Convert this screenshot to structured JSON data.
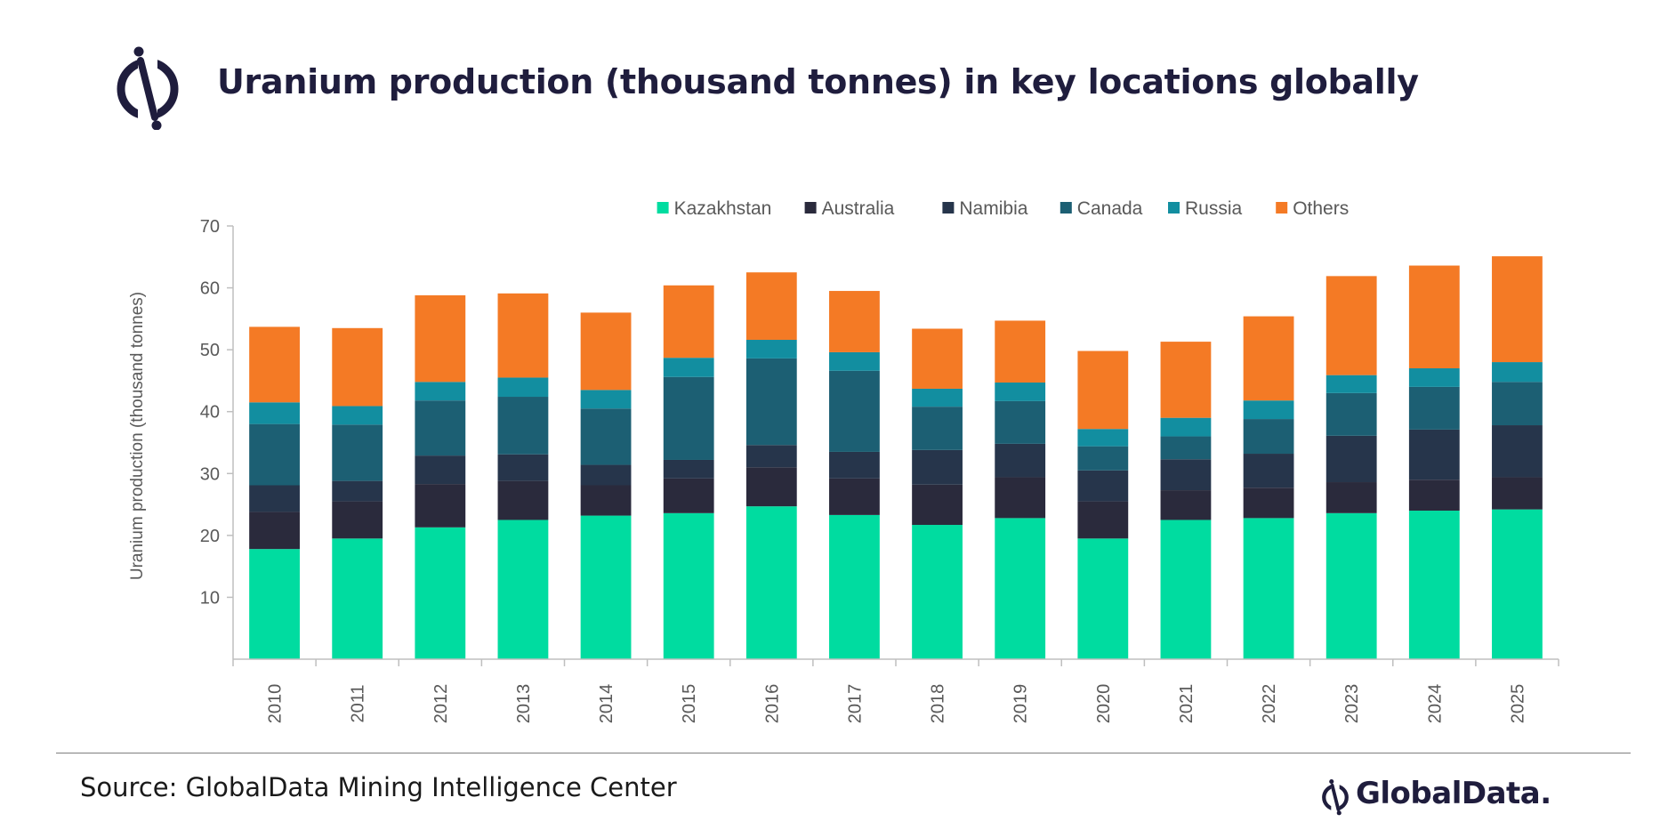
{
  "header": {
    "title": "Uranium production (thousand tonnes) in key locations globally"
  },
  "footer": {
    "source": "Source: GlobalData Mining Intelligence Center",
    "brand": "GlobalData."
  },
  "colors": {
    "brand_navy": "#1f1d3d",
    "axis": "#bfbfbf",
    "tick_text": "#595959"
  },
  "chart_data": {
    "type": "bar",
    "stacked": true,
    "title": "",
    "xlabel": "",
    "ylabel": "Uranium production (thousand tonnes)",
    "ylim": [
      0,
      70
    ],
    "yticks": [
      10,
      20,
      30,
      40,
      50,
      60,
      70
    ],
    "legend_position": "top",
    "grid": false,
    "categories": [
      "2010",
      "2011",
      "2012",
      "2013",
      "2014",
      "2015",
      "2016",
      "2017",
      "2018",
      "2019",
      "2020",
      "2021",
      "2022",
      "2023",
      "2024",
      "2025"
    ],
    "series": [
      {
        "name": "Kazakhstan",
        "color": "#00dca0",
        "values": [
          17.8,
          19.5,
          21.3,
          22.5,
          23.2,
          23.6,
          24.7,
          23.3,
          21.7,
          22.8,
          19.5,
          22.5,
          22.8,
          23.6,
          24.0,
          24.2
        ]
      },
      {
        "name": "Australia",
        "color": "#2a2a3c",
        "values": [
          6.0,
          6.0,
          7.0,
          6.3,
          4.9,
          5.6,
          6.3,
          5.9,
          6.5,
          6.6,
          6.0,
          4.8,
          4.9,
          5.0,
          5.0,
          5.2
        ]
      },
      {
        "name": "Namibia",
        "color": "#26354b",
        "values": [
          4.3,
          3.3,
          4.6,
          4.3,
          3.3,
          3.0,
          3.6,
          4.3,
          5.6,
          5.4,
          5.0,
          5.0,
          5.5,
          7.5,
          8.1,
          8.4
        ]
      },
      {
        "name": "Canada",
        "color": "#1c5f73",
        "values": [
          9.9,
          9.1,
          8.9,
          9.3,
          9.1,
          13.4,
          14.0,
          13.1,
          7.0,
          6.9,
          3.9,
          3.7,
          5.6,
          6.9,
          6.9,
          7.0
        ]
      },
      {
        "name": "Russia",
        "color": "#128ea0",
        "values": [
          3.5,
          3.0,
          3.0,
          3.1,
          3.0,
          3.1,
          3.0,
          3.0,
          2.9,
          3.0,
          2.8,
          3.0,
          3.0,
          2.9,
          3.0,
          3.2
        ]
      },
      {
        "name": "Others",
        "color": "#f47a25",
        "values": [
          12.2,
          12.6,
          14.0,
          13.6,
          12.5,
          11.7,
          10.9,
          9.9,
          9.7,
          10.0,
          12.6,
          12.3,
          13.6,
          16.0,
          16.6,
          17.1
        ]
      }
    ]
  }
}
